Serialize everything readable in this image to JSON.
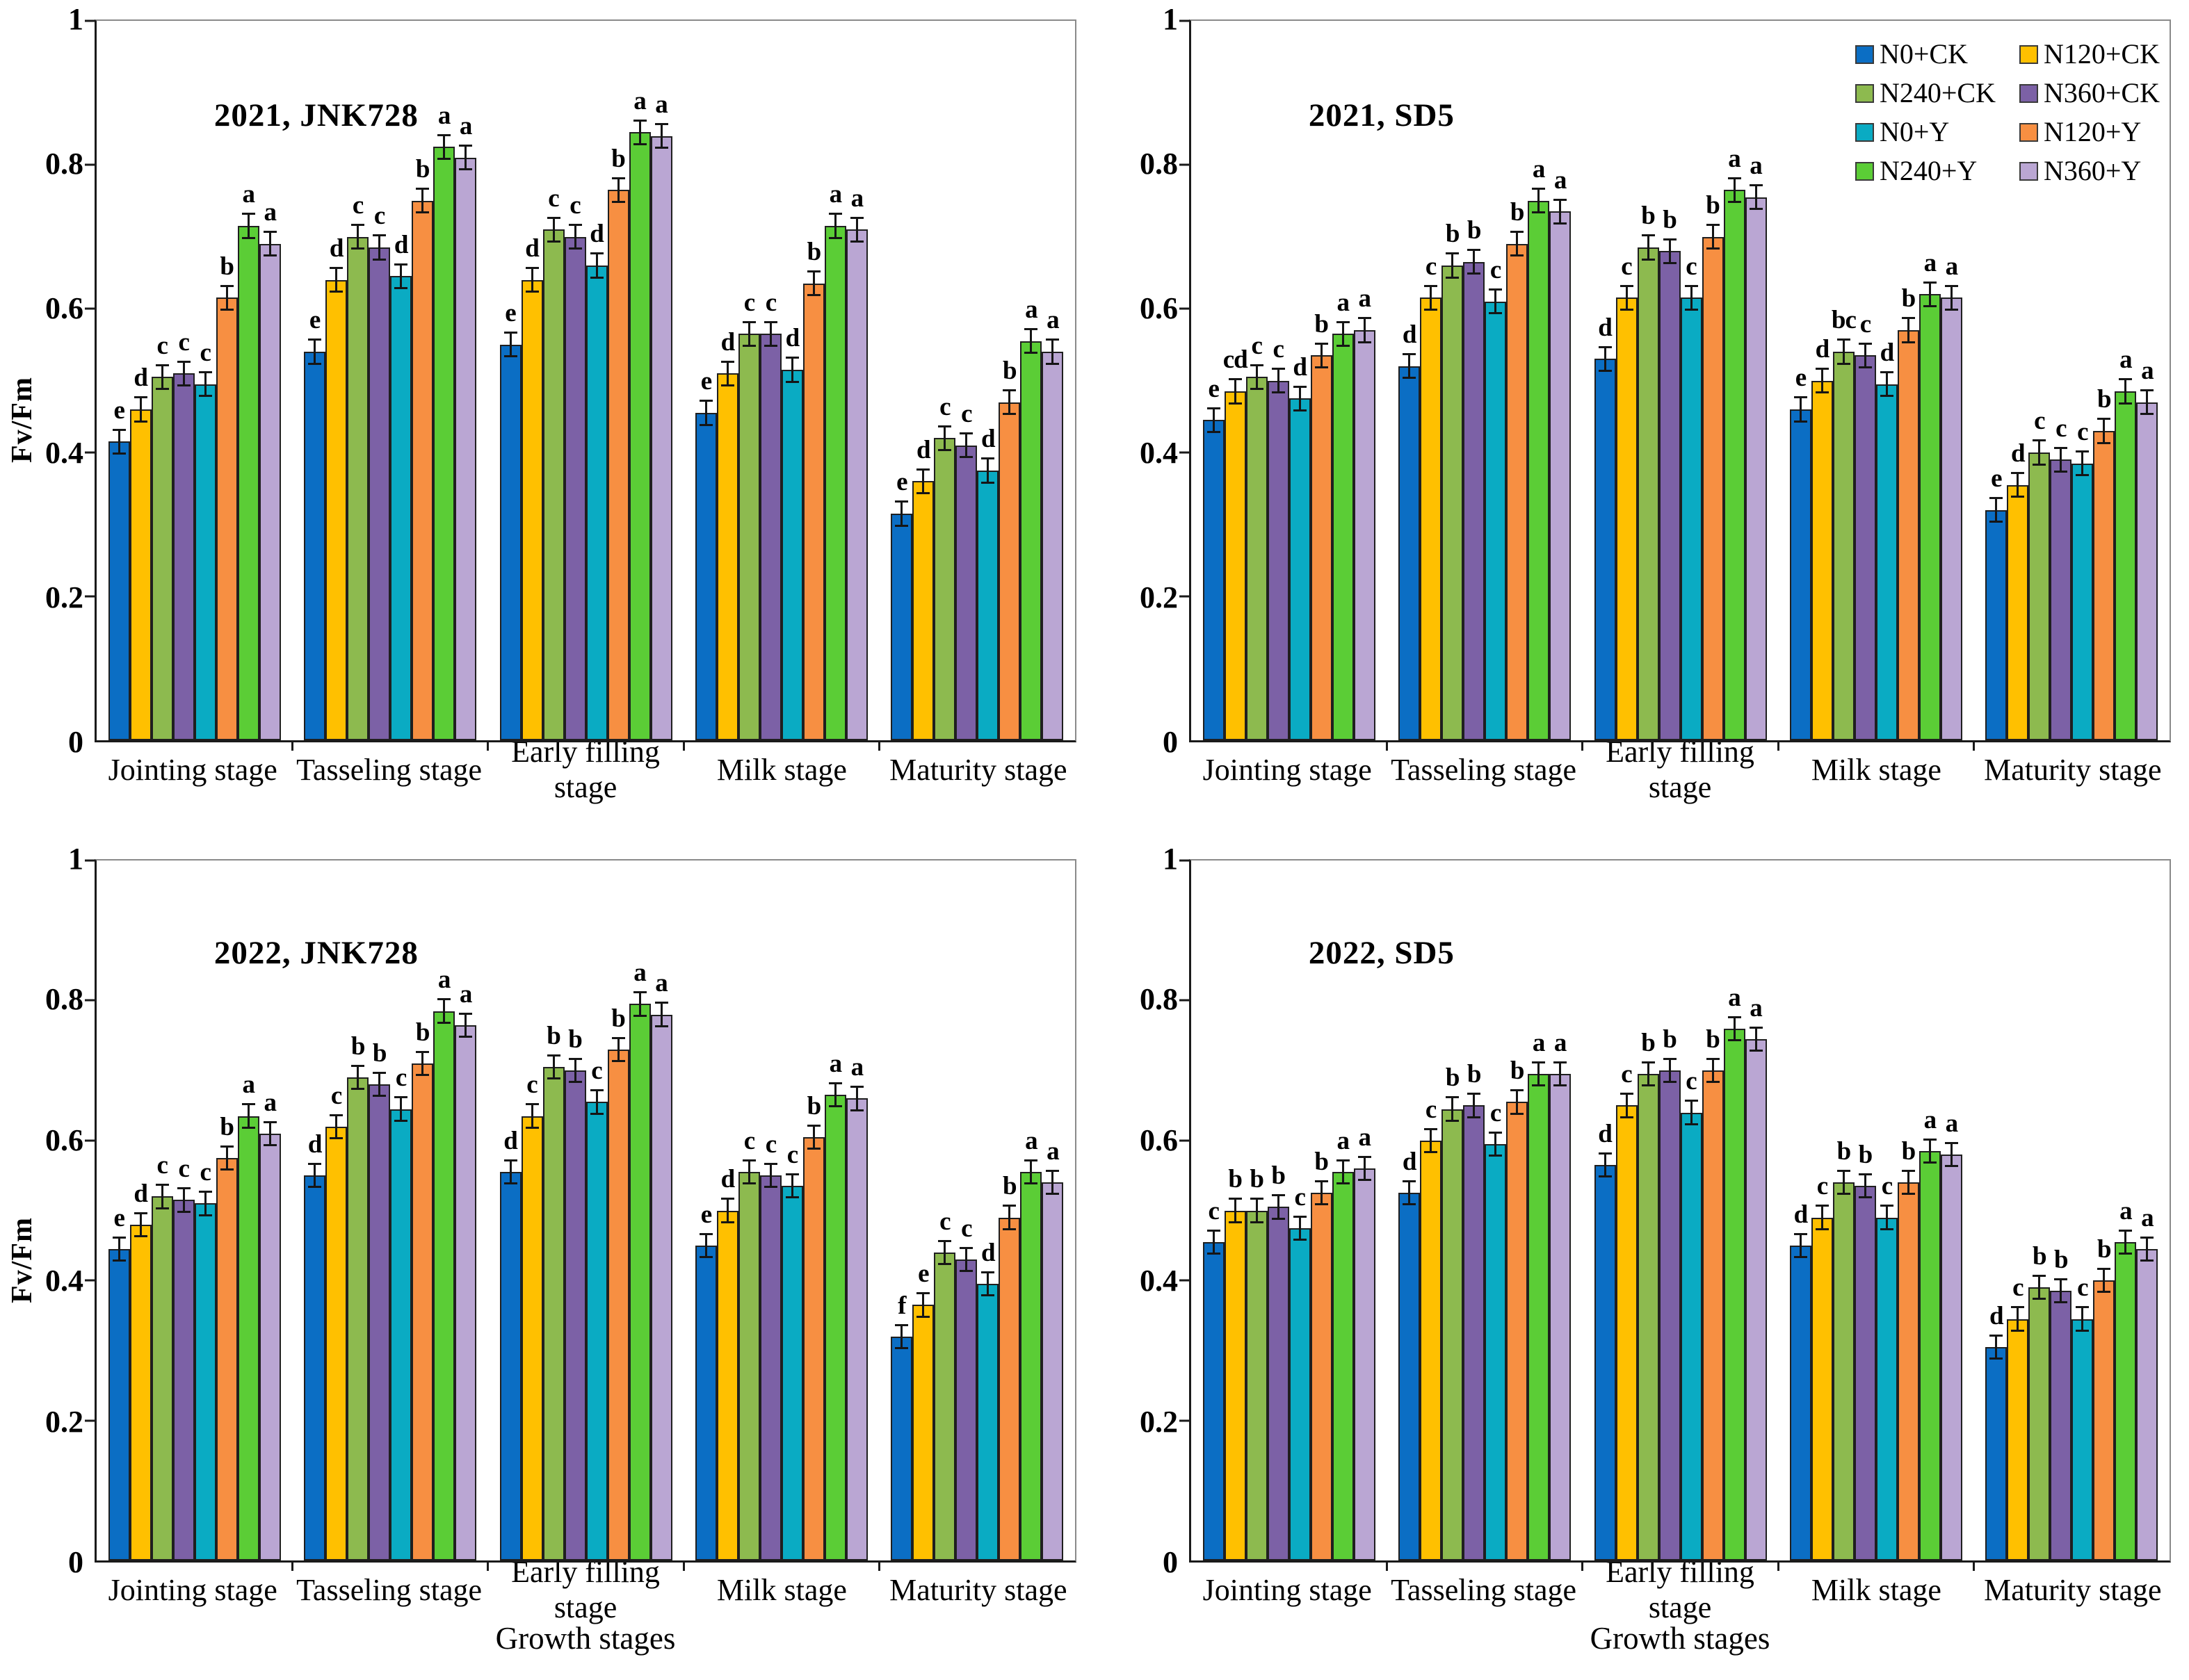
{
  "figure": {
    "ylabel": "Fv/Fm",
    "xlabel": "Growth stages",
    "yticks": [
      "0",
      "0.2",
      "0.4",
      "0.6",
      "0.8",
      "1"
    ],
    "ylim": [
      0,
      1
    ],
    "grid": false,
    "error_bar_approx": 0.018,
    "treatments": [
      {
        "label": "N0+CK",
        "color": "#0b6ec4"
      },
      {
        "label": "N120+CK",
        "color": "#ffc000"
      },
      {
        "label": "N240+CK",
        "color": "#8dba4f"
      },
      {
        "label": "N360+CK",
        "color": "#7c61a6"
      },
      {
        "label": "N0+Y",
        "color": "#0aabc3"
      },
      {
        "label": "N120+Y",
        "color": "#f78f42"
      },
      {
        "label": "N240+Y",
        "color": "#5bcd36"
      },
      {
        "label": "N360+Y",
        "color": "#baa6d3"
      }
    ],
    "legend_position": "top-right of 2021 SD5 panel"
  },
  "chart_data": [
    {
      "type": "bar",
      "title": "2021, JNK728",
      "ylabel": "Fv/Fm",
      "ylim": [
        0,
        1
      ],
      "categories": [
        "Jointing stage",
        "Tasseling stage",
        "Early filling stage",
        "Milk stage",
        "Maturity stage"
      ],
      "series": [
        {
          "name": "N0+CK",
          "values": [
            0.415,
            0.54,
            0.55,
            0.455,
            0.315
          ],
          "letters": [
            "e",
            "e",
            "e",
            "e",
            "e"
          ]
        },
        {
          "name": "N120+CK",
          "values": [
            0.46,
            0.64,
            0.64,
            0.51,
            0.36
          ],
          "letters": [
            "d",
            "d",
            "d",
            "d",
            "d"
          ]
        },
        {
          "name": "N240+CK",
          "values": [
            0.505,
            0.7,
            0.71,
            0.565,
            0.42
          ],
          "letters": [
            "c",
            "c",
            "c",
            "c",
            "c"
          ]
        },
        {
          "name": "N360+CK",
          "values": [
            0.51,
            0.685,
            0.7,
            0.565,
            0.41
          ],
          "letters": [
            "c",
            "c",
            "c",
            "c",
            "c"
          ]
        },
        {
          "name": "N0+Y",
          "values": [
            0.495,
            0.645,
            0.66,
            0.515,
            0.375
          ],
          "letters": [
            "c",
            "d",
            "d",
            "d",
            "d"
          ]
        },
        {
          "name": "N120+Y",
          "values": [
            0.615,
            0.75,
            0.765,
            0.635,
            0.47
          ],
          "letters": [
            "b",
            "b",
            "b",
            "b",
            "b"
          ]
        },
        {
          "name": "N240+Y",
          "values": [
            0.715,
            0.825,
            0.845,
            0.715,
            0.555
          ],
          "letters": [
            "a",
            "a",
            "a",
            "a",
            "a"
          ]
        },
        {
          "name": "N360+Y",
          "values": [
            0.69,
            0.81,
            0.84,
            0.71,
            0.54
          ],
          "letters": [
            "a",
            "a",
            "a",
            "a",
            "a"
          ]
        }
      ]
    },
    {
      "type": "bar",
      "title": "2021, SD5",
      "ylim": [
        0,
        1
      ],
      "categories": [
        "Jointing stage",
        "Tasseling stage",
        "Early filling stage",
        "Milk stage",
        "Maturity stage"
      ],
      "series": [
        {
          "name": "N0+CK",
          "values": [
            0.445,
            0.52,
            0.53,
            0.46,
            0.32
          ],
          "letters": [
            "e",
            "d",
            "d",
            "e",
            "e"
          ]
        },
        {
          "name": "N120+CK",
          "values": [
            0.485,
            0.615,
            0.615,
            0.5,
            0.355
          ],
          "letters": [
            "cd",
            "c",
            "c",
            "d",
            "d"
          ]
        },
        {
          "name": "N240+CK",
          "values": [
            0.505,
            0.66,
            0.685,
            0.54,
            0.4
          ],
          "letters": [
            "c",
            "b",
            "b",
            "bc",
            "c"
          ]
        },
        {
          "name": "N360+CK",
          "values": [
            0.5,
            0.665,
            0.68,
            0.535,
            0.39
          ],
          "letters": [
            "c",
            "b",
            "b",
            "c",
            "c"
          ]
        },
        {
          "name": "N0+Y",
          "values": [
            0.475,
            0.61,
            0.615,
            0.495,
            0.385
          ],
          "letters": [
            "d",
            "c",
            "c",
            "d",
            "c"
          ]
        },
        {
          "name": "N120+Y",
          "values": [
            0.535,
            0.69,
            0.7,
            0.57,
            0.43
          ],
          "letters": [
            "b",
            "b",
            "b",
            "b",
            "b"
          ]
        },
        {
          "name": "N240+Y",
          "values": [
            0.565,
            0.75,
            0.765,
            0.62,
            0.485
          ],
          "letters": [
            "a",
            "a",
            "a",
            "a",
            "a"
          ]
        },
        {
          "name": "N360+Y",
          "values": [
            0.57,
            0.735,
            0.755,
            0.615,
            0.47
          ],
          "letters": [
            "a",
            "a",
            "a",
            "a",
            "a"
          ]
        }
      ],
      "legend": true
    },
    {
      "type": "bar",
      "title": "2022, JNK728",
      "ylabel": "Fv/Fm",
      "xlabel": "Growth stages",
      "ylim": [
        0,
        1
      ],
      "categories": [
        "Jointing stage",
        "Tasseling stage",
        "Early filling stage",
        "Milk stage",
        "Maturity stage"
      ],
      "series": [
        {
          "name": "N0+CK",
          "values": [
            0.445,
            0.55,
            0.555,
            0.45,
            0.32
          ],
          "letters": [
            "e",
            "d",
            "d",
            "e",
            "f"
          ]
        },
        {
          "name": "N120+CK",
          "values": [
            0.48,
            0.62,
            0.635,
            0.5,
            0.365
          ],
          "letters": [
            "d",
            "c",
            "c",
            "d",
            "e"
          ]
        },
        {
          "name": "N240+CK",
          "values": [
            0.52,
            0.69,
            0.705,
            0.555,
            0.44
          ],
          "letters": [
            "c",
            "b",
            "b",
            "c",
            "c"
          ]
        },
        {
          "name": "N360+CK",
          "values": [
            0.515,
            0.68,
            0.7,
            0.55,
            0.43
          ],
          "letters": [
            "c",
            "b",
            "b",
            "c",
            "c"
          ]
        },
        {
          "name": "N0+Y",
          "values": [
            0.51,
            0.645,
            0.655,
            0.535,
            0.395
          ],
          "letters": [
            "c",
            "c",
            "c",
            "c",
            "d"
          ]
        },
        {
          "name": "N120+Y",
          "values": [
            0.575,
            0.71,
            0.73,
            0.605,
            0.49
          ],
          "letters": [
            "b",
            "b",
            "b",
            "b",
            "b"
          ]
        },
        {
          "name": "N240+Y",
          "values": [
            0.635,
            0.785,
            0.795,
            0.665,
            0.555
          ],
          "letters": [
            "a",
            "a",
            "a",
            "a",
            "a"
          ]
        },
        {
          "name": "N360+Y",
          "values": [
            0.61,
            0.765,
            0.78,
            0.66,
            0.54
          ],
          "letters": [
            "a",
            "a",
            "a",
            "a",
            "a"
          ]
        }
      ]
    },
    {
      "type": "bar",
      "title": "2022, SD5",
      "xlabel": "Growth stages",
      "ylim": [
        0,
        1
      ],
      "categories": [
        "Jointing stage",
        "Tasseling stage",
        "Early filling stage",
        "Milk stage",
        "Maturity stage"
      ],
      "series": [
        {
          "name": "N0+CK",
          "values": [
            0.455,
            0.525,
            0.565,
            0.45,
            0.305
          ],
          "letters": [
            "c",
            "d",
            "d",
            "d",
            "d"
          ]
        },
        {
          "name": "N120+CK",
          "values": [
            0.5,
            0.6,
            0.65,
            0.49,
            0.345
          ],
          "letters": [
            "b",
            "c",
            "c",
            "c",
            "c"
          ]
        },
        {
          "name": "N240+CK",
          "values": [
            0.5,
            0.645,
            0.695,
            0.54,
            0.39
          ],
          "letters": [
            "b",
            "b",
            "b",
            "b",
            "b"
          ]
        },
        {
          "name": "N360+CK",
          "values": [
            0.505,
            0.65,
            0.7,
            0.535,
            0.385
          ],
          "letters": [
            "b",
            "b",
            "b",
            "b",
            "b"
          ]
        },
        {
          "name": "N0+Y",
          "values": [
            0.475,
            0.595,
            0.64,
            0.49,
            0.345
          ],
          "letters": [
            "c",
            "c",
            "c",
            "c",
            "c"
          ]
        },
        {
          "name": "N120+Y",
          "values": [
            0.525,
            0.655,
            0.7,
            0.54,
            0.4
          ],
          "letters": [
            "b",
            "b",
            "b",
            "b",
            "b"
          ]
        },
        {
          "name": "N240+Y",
          "values": [
            0.555,
            0.695,
            0.76,
            0.585,
            0.455
          ],
          "letters": [
            "a",
            "a",
            "a",
            "a",
            "a"
          ]
        },
        {
          "name": "N360+Y",
          "values": [
            0.56,
            0.695,
            0.745,
            0.58,
            0.445
          ],
          "letters": [
            "a",
            "a",
            "a",
            "a",
            "a"
          ]
        }
      ]
    }
  ]
}
